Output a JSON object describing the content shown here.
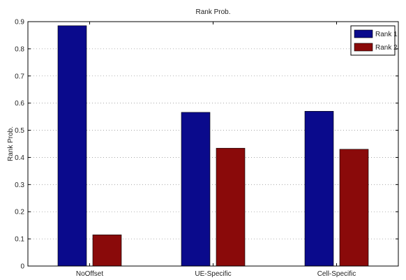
{
  "chart_data": {
    "type": "bar",
    "title": "Rank Prob.",
    "xlabel": "",
    "ylabel": "Rank Prob.",
    "categories": [
      "NoOffset",
      "UE-Specific",
      "Cell-Specific"
    ],
    "series": [
      {
        "name": "Rank 1",
        "color": "#0a0a8c",
        "values": [
          0.885,
          0.566,
          0.57
        ]
      },
      {
        "name": "Rank 2",
        "color": "#8a0a0a",
        "values": [
          0.115,
          0.434,
          0.43
        ]
      }
    ],
    "ylim": [
      0,
      0.9
    ],
    "yticks": [
      "0",
      "0.1",
      "0.2",
      "0.3",
      "0.4",
      "0.5",
      "0.6",
      "0.7",
      "0.8",
      "0.9"
    ],
    "grid": true,
    "legend": "top-right"
  }
}
